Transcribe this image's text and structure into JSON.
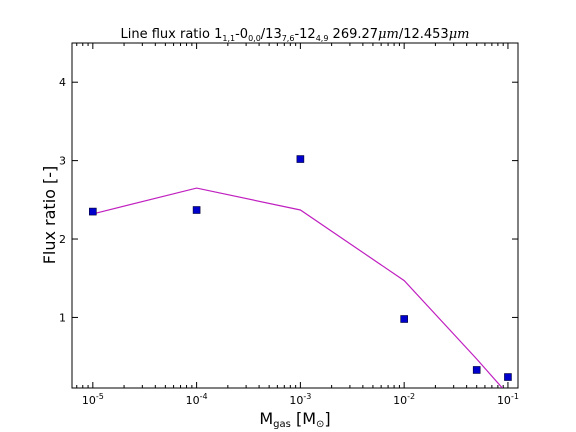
{
  "chart_data": {
    "type": "line",
    "title": {
      "prefix": "Line flux ratio 1",
      "sub1": "1,1",
      "part2": "-0",
      "sub2": "0,0",
      "part3": "/13",
      "sub3": "7,6",
      "part4": "-12",
      "sub4": "4,9",
      "part5": " 269.27",
      "italic1": "μm",
      "part6": "/12.453",
      "italic2": "μm"
    },
    "xlabel": {
      "main": "M",
      "sub": "gas",
      "rest": " [M",
      "sym": "⊙",
      "close": "]"
    },
    "ylabel": "Flux ratio [-]",
    "x_scale": "log",
    "xlim": [
      6.3e-06,
      0.125
    ],
    "ylim": [
      0.1,
      4.5
    ],
    "x_ticks": [
      {
        "value": 1e-05,
        "base": "10",
        "exp": "-5"
      },
      {
        "value": 0.0001,
        "base": "10",
        "exp": "-4"
      },
      {
        "value": 0.001,
        "base": "10",
        "exp": "-3"
      },
      {
        "value": 0.01,
        "base": "10",
        "exp": "-2"
      },
      {
        "value": 0.1,
        "base": "10",
        "exp": "-1"
      }
    ],
    "y_ticks": [
      {
        "value": 1,
        "label": "1"
      },
      {
        "value": 2,
        "label": "2"
      },
      {
        "value": 3,
        "label": "3"
      },
      {
        "value": 4,
        "label": "4"
      }
    ],
    "grid": false,
    "series": [
      {
        "type": "line",
        "color": "#c020c0",
        "x": [
          1e-05,
          0.0001,
          0.001,
          0.01,
          0.05,
          0.1
        ],
        "y": [
          2.32,
          2.65,
          2.37,
          1.47,
          0.47,
          0.02
        ]
      },
      {
        "type": "scatter",
        "marker": "square",
        "color": "#0000cc",
        "x": [
          1e-05,
          0.0001,
          0.001,
          0.01,
          0.05,
          0.1
        ],
        "y": [
          2.35,
          2.37,
          3.02,
          0.98,
          0.33,
          0.24
        ]
      }
    ]
  }
}
